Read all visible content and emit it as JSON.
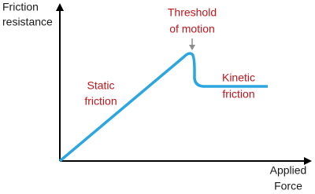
{
  "labels": {
    "y_axis": [
      "Friction",
      "resistance"
    ],
    "x_axis": [
      "Applied",
      "Force"
    ],
    "threshold": [
      "Threshold",
      "of motion"
    ],
    "static": [
      "Static",
      "friction"
    ],
    "kinetic": [
      "Kinetic",
      "friction"
    ]
  }
}
